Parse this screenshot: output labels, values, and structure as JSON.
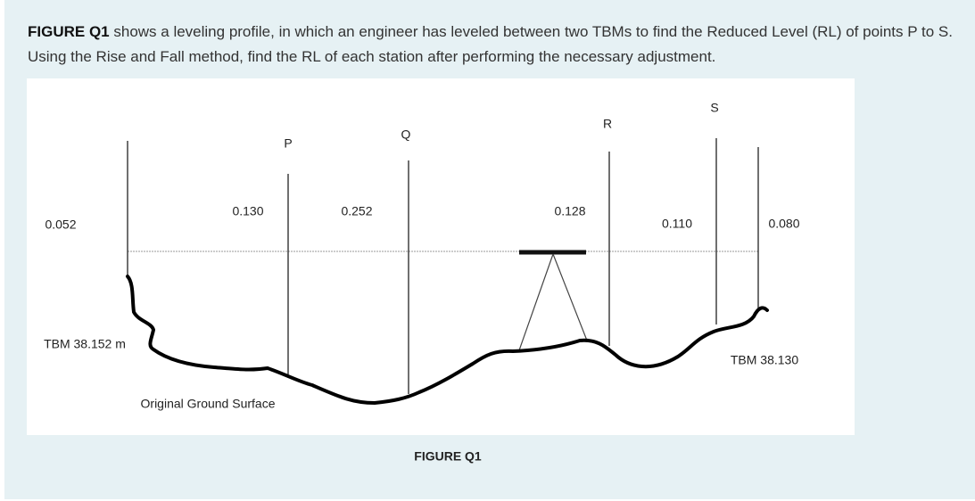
{
  "question": {
    "lead": "FIGURE Q1",
    "text": "shows a leveling profile, in which an engineer has leveled between two TBMs to find the Reduced Level (RL) of points P to S. Using the Rise and Fall method, find the RL of each station after performing the necessary adjustment."
  },
  "figure": {
    "stations": [
      "P",
      "Q",
      "R",
      "S"
    ],
    "readings": [
      "0.052",
      "0.130",
      "0.252",
      "0.128",
      "0.110",
      "0.080"
    ],
    "tbm_left": "TBM 38.152 m",
    "tbm_right": "TBM 38.130",
    "ground_label": "Original Ground Surface",
    "caption": "FIGURE Q1"
  }
}
